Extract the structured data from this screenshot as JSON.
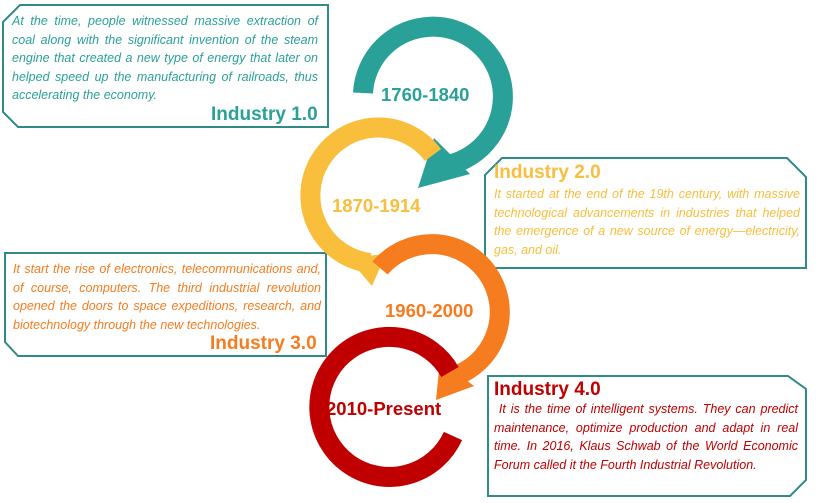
{
  "colors": {
    "teal": "#2aa198",
    "yellow": "#f8be3c",
    "orange": "#f57c1f",
    "red": "#c00000",
    "box_border": "#2f8a88"
  },
  "stages": [
    {
      "years": "1760-1840",
      "title": "Industry 1.0",
      "description": "At the time, people witnessed massive extraction of coal along with the significant invention of the steam engine that created a new type of energy that later on helped speed up the manufacturing of railroads, thus accelerating the economy."
    },
    {
      "years": "1870-1914",
      "title": "Industry 2.0",
      "description": "It started at the end of the 19th century, with massive technological advancements in industries that helped the emergence of a new source of energy—electricity, gas, and oil."
    },
    {
      "years": "1960-2000",
      "title": "Industry 3.0",
      "description": "It start the rise of electronics, telecommunications and, of course, computers. The third industrial revolution opened the doors to space expeditions, research, and biotechnology through the new technologies."
    },
    {
      "years": "2010-Present",
      "title": "Industry 4.0",
      "description": " It is the time of intelligent systems. They can predict maintenance, optimize production and adapt in real time. In 2016, Klaus Schwab of the World Economic Forum called it the Fourth Industrial Revolution."
    }
  ]
}
